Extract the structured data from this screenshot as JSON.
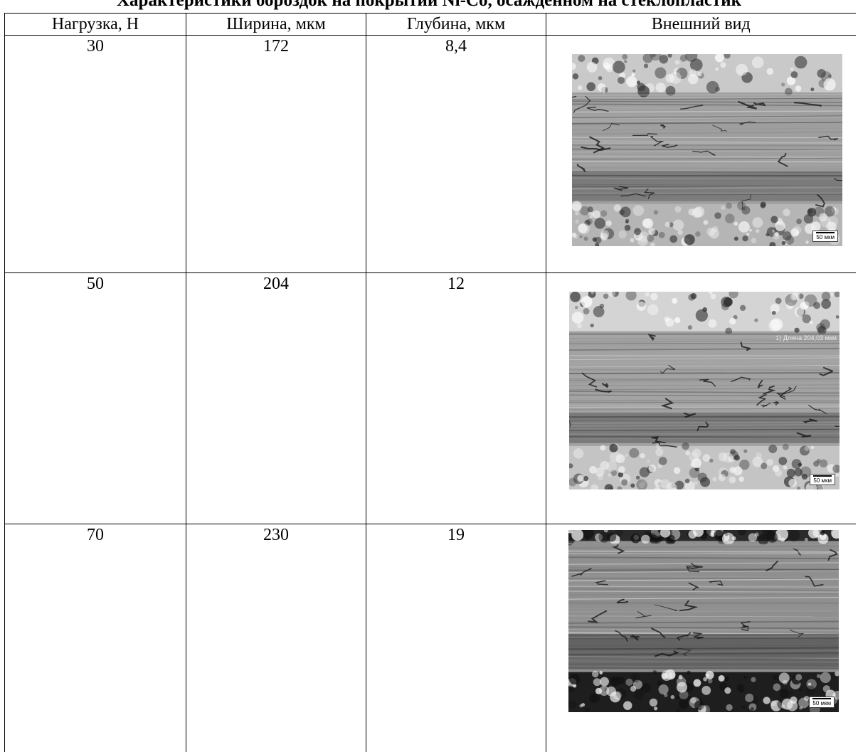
{
  "document": {
    "title": "Характеристики бороздок на покрытии Ni-Co, осажденном на стеклопластик"
  },
  "table": {
    "headers": [
      "Нагрузка, Н",
      "Ширина, мкм",
      "Глубина, мкм",
      "Внешний вид"
    ],
    "rows": [
      {
        "load": "30",
        "width": "172",
        "depth": "8,4",
        "scale_label": "50 мкм",
        "measure_label": ""
      },
      {
        "load": "50",
        "width": "204",
        "depth": "12",
        "scale_label": "50 мкм",
        "measure_label": "1) Длина 204,03 мкм"
      },
      {
        "load": "70",
        "width": "230",
        "depth": "19",
        "scale_label": "50 мкм",
        "measure_label": ""
      }
    ]
  },
  "micrographs": [
    {
      "tone_top": "#c9c9c9",
      "tone_band": "#9e9e9e",
      "tone_bottom": "#b5b5b5",
      "tone_dark": "#3a3a3a"
    },
    {
      "tone_top": "#d4d4d4",
      "tone_band": "#a2a2a2",
      "tone_bottom": "#c4c4c4",
      "tone_dark": "#2f2f2f"
    },
    {
      "tone_top": "#2a2a2a",
      "tone_band": "#8f8f8f",
      "tone_bottom": "#1e1e1e",
      "tone_dark": "#111111"
    }
  ]
}
